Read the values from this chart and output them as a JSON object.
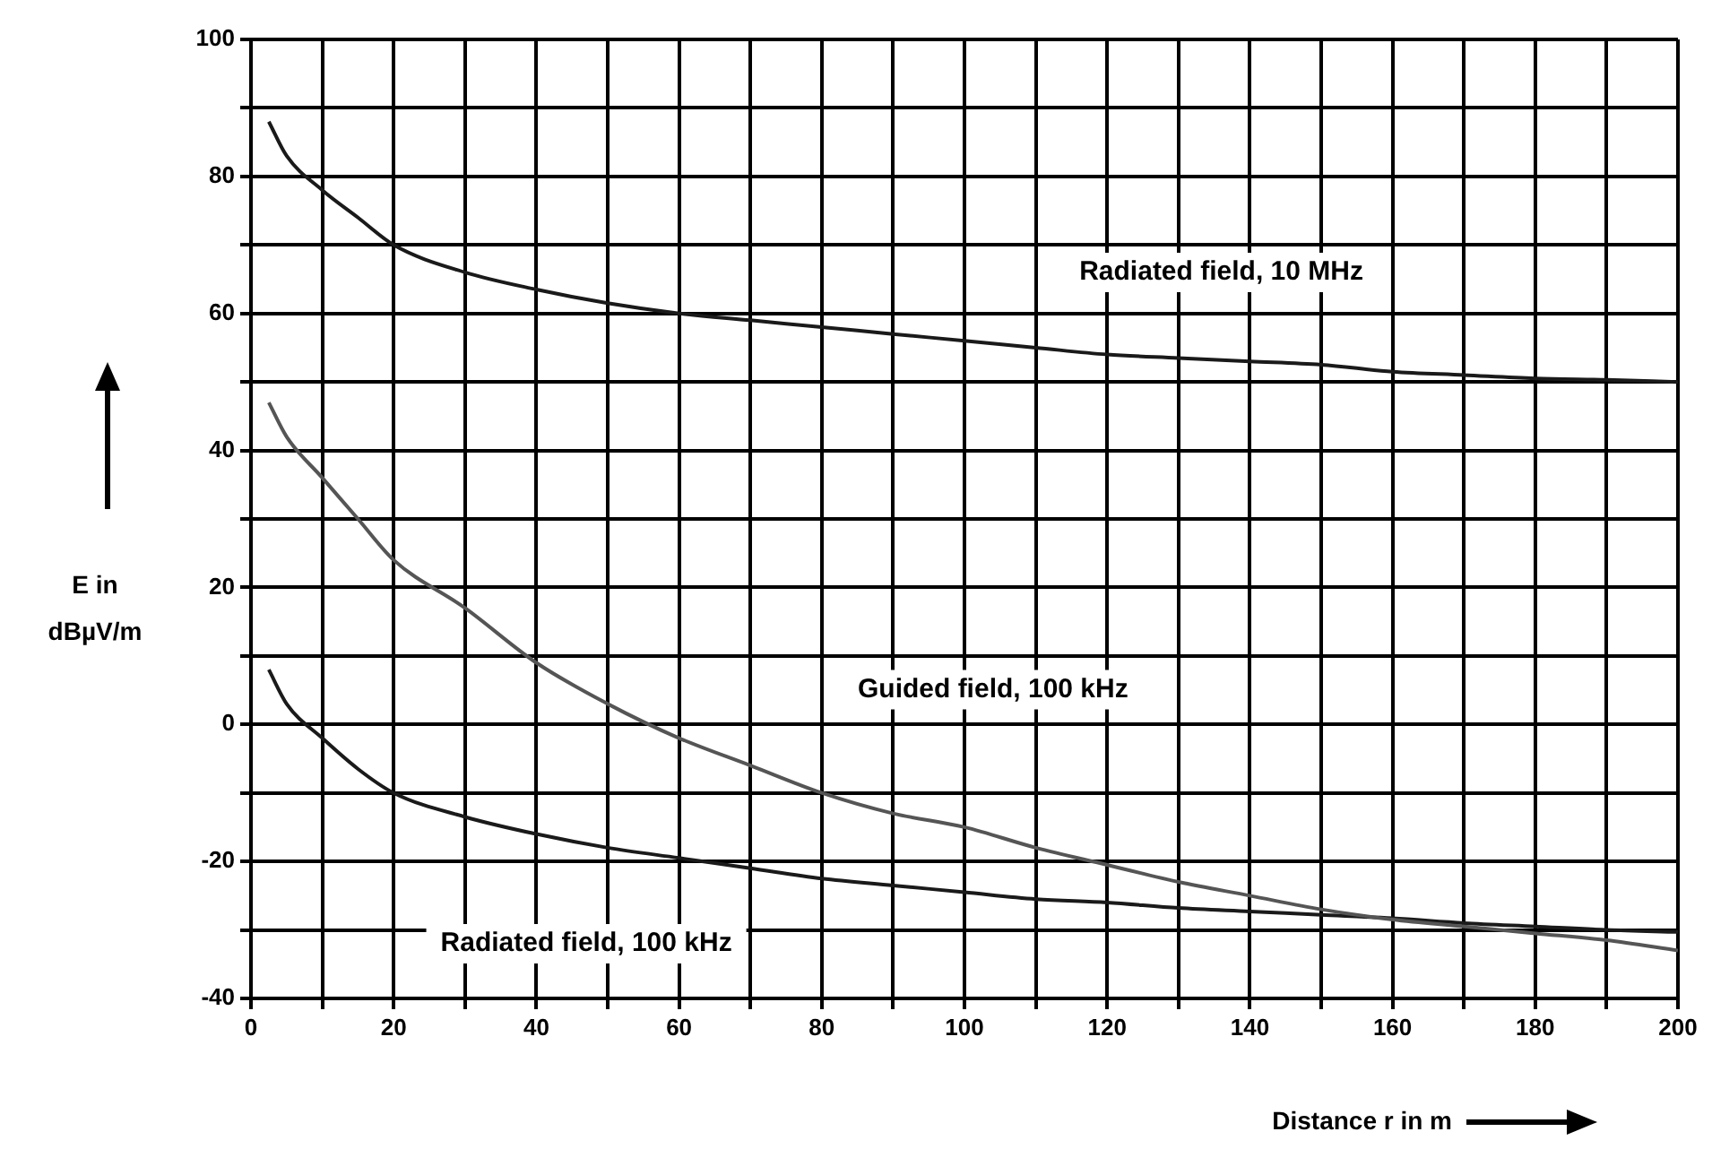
{
  "chart_data": {
    "type": "line",
    "xlabel": "Distance r in m",
    "ylabel": "E in dBµV/m",
    "xlim": [
      0,
      200
    ],
    "xticks": [
      0,
      20,
      40,
      60,
      80,
      100,
      120,
      140,
      160,
      180,
      200
    ],
    "ylim": [
      -40,
      100
    ],
    "yticks": [
      -40,
      -20,
      0,
      20,
      40,
      60,
      80,
      100
    ],
    "grid": true,
    "legend": false,
    "marker": "none",
    "line_style": "solid",
    "series": [
      {
        "color": "#1a1a1a",
        "x": [
          2.5,
          5,
          10,
          15,
          20,
          30,
          40,
          50,
          60,
          70,
          80,
          90,
          100,
          110,
          120,
          130,
          140,
          150,
          160,
          170,
          180,
          190,
          200
        ],
        "values": [
          88,
          83,
          78,
          74,
          70,
          66,
          63.5,
          61.5,
          60,
          59,
          58,
          57,
          56,
          55,
          54,
          53.5,
          53,
          52.5,
          51.5,
          51,
          50.5,
          50.3,
          50
        ]
      },
      {
        "color": "#555555",
        "x": [
          2.5,
          5,
          10,
          15,
          20,
          30,
          40,
          50,
          60,
          70,
          80,
          90,
          100,
          110,
          120,
          130,
          140,
          150,
          160,
          170,
          180,
          190,
          200
        ],
        "values": [
          47,
          42,
          36,
          30,
          24,
          17,
          9,
          3,
          -2,
          -6,
          -10,
          -13,
          -15,
          -18,
          -20.5,
          -23,
          -25,
          -27,
          -28.5,
          -29.5,
          -30.5,
          -31.5,
          -33
        ]
      },
      {
        "color": "#1a1a1a",
        "x": [
          2.5,
          5,
          10,
          15,
          20,
          30,
          40,
          50,
          60,
          70,
          80,
          90,
          100,
          110,
          120,
          130,
          140,
          150,
          160,
          170,
          180,
          190,
          200
        ],
        "values": [
          8,
          3,
          -2,
          -6.5,
          -10,
          -13.5,
          -16,
          -18,
          -19.5,
          -21,
          -22.5,
          -23.5,
          -24.5,
          -25.5,
          -26,
          -26.8,
          -27.3,
          -27.8,
          -28.3,
          -29,
          -29.5,
          -30,
          -30.3
        ]
      }
    ],
    "annotations": [
      "Radiated field, 10 MHz",
      "Guided field, 100 kHz",
      "Radiated field, 100 kHz"
    ]
  }
}
